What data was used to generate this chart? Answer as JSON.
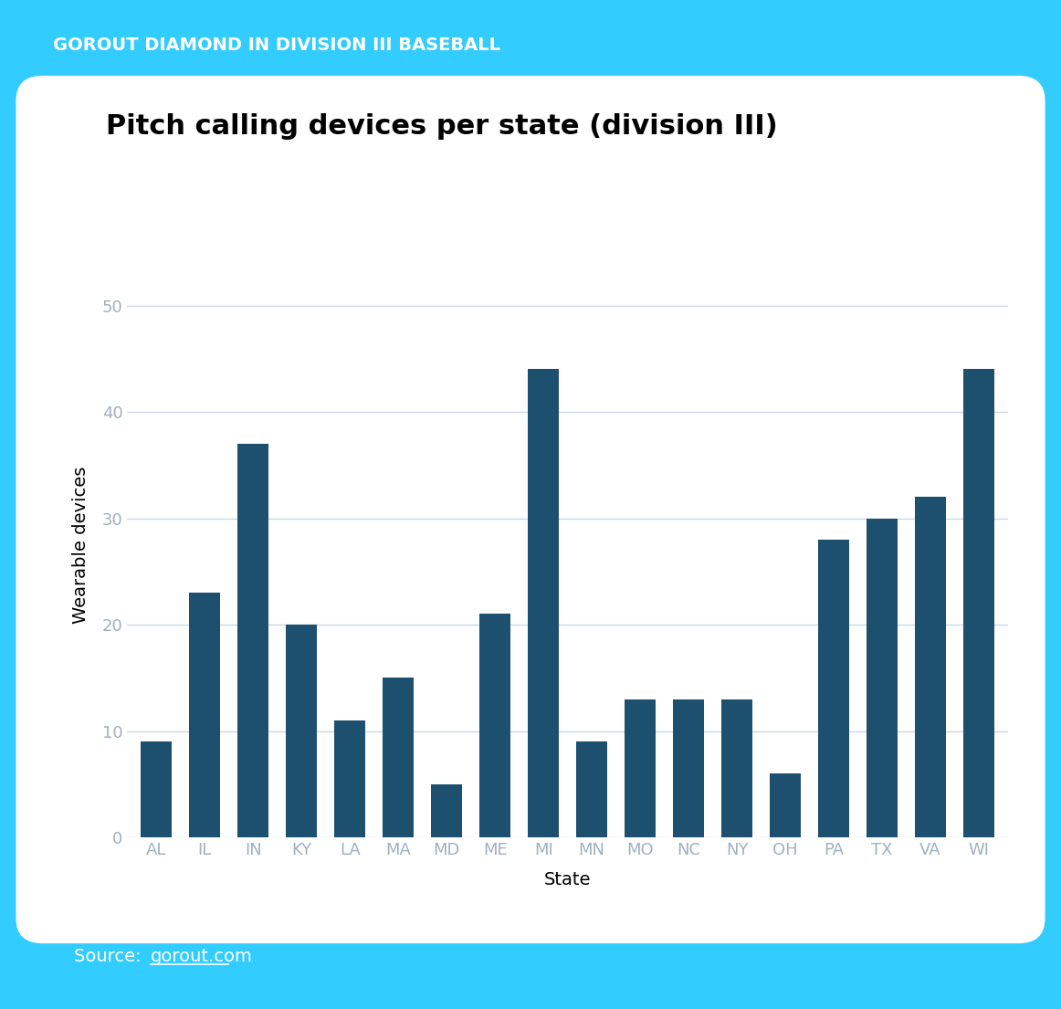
{
  "title": "Pitch calling devices per state (division III)",
  "header": "GOROUT DIAMOND IN DIVISION III BASEBALL",
  "source_text": "Source: ",
  "source_link": "gorout.com",
  "xlabel": "State",
  "ylabel": "Wearable devices",
  "categories": [
    "AL",
    "IL",
    "IN",
    "KY",
    "LA",
    "MA",
    "MD",
    "ME",
    "MI",
    "MN",
    "MO",
    "NC",
    "NY",
    "OH",
    "PA",
    "TX",
    "VA",
    "WI"
  ],
  "values": [
    9,
    23,
    37,
    20,
    11,
    15,
    5,
    21,
    44,
    9,
    13,
    13,
    13,
    6,
    28,
    30,
    32,
    44
  ],
  "bar_color": "#1d4f6e",
  "background_outer": "#33ccff",
  "background_inner": "#ffffff",
  "grid_color": "#c8d8e8",
  "tick_color": "#a0b0c0",
  "yticks": [
    0,
    10,
    20,
    30,
    40,
    50
  ],
  "ylim": [
    0,
    55
  ],
  "title_fontsize": 22,
  "header_fontsize": 14,
  "axis_label_fontsize": 14,
  "tick_fontsize": 13,
  "source_fontsize": 14
}
